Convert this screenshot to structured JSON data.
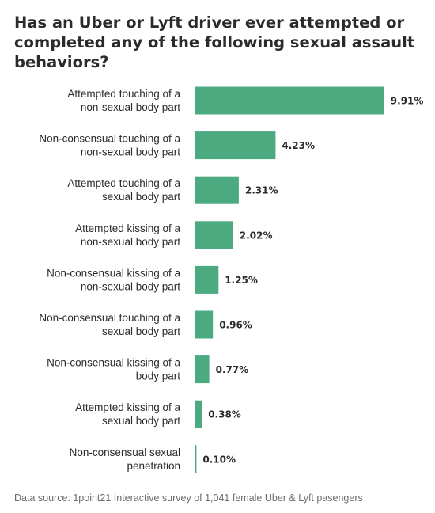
{
  "chart_data": {
    "type": "bar",
    "orientation": "horizontal",
    "title": "Has an Uber or Lyft driver ever attempted or completed any of the following sexual assault behaviors?",
    "categories": [
      "Attempted touching of a non-sexual body part",
      "Non-consensual touching of a non-sexual body part",
      "Attempted touching of a sexual body part",
      "Attempted kissing of a non-sexual body part",
      "Non-consensual kissing of a non-sexual body part",
      "Non-consensual touching of a sexual body part",
      "Non-consensual kissing of a body part",
      "Attempted kissing of a sexual body part",
      "Non-consensual sexual penetration"
    ],
    "category_lines": [
      [
        "Attempted touching of a",
        "non-sexual body part"
      ],
      [
        "Non-consensual touching of a",
        "non-sexual body part"
      ],
      [
        "Attempted touching of a",
        "sexual body part"
      ],
      [
        "Attempted kissing of a",
        "non-sexual body part"
      ],
      [
        "Non-consensual kissing of a",
        "non-sexual body part"
      ],
      [
        "Non-consensual touching of a",
        "sexual body part"
      ],
      [
        "Non-consensual kissing of a",
        "body part"
      ],
      [
        "Attempted kissing of a",
        "sexual body part"
      ],
      [
        "Non-consensual sexual",
        "penetration"
      ]
    ],
    "values": [
      9.91,
      4.23,
      2.31,
      2.02,
      1.25,
      0.96,
      0.77,
      0.38,
      0.1
    ],
    "value_labels": [
      "9.91%",
      "4.23%",
      "2.31%",
      "2.02%",
      "1.25%",
      "0.96%",
      "0.77%",
      "0.38%",
      "0.10%"
    ],
    "unit": "%",
    "xlim": [
      0,
      10
    ],
    "grid": false,
    "bar_color": "#4caa80",
    "source": "Data source: 1point21 Interactive survey of 1,041 female Uber & Lyft pasengers"
  }
}
